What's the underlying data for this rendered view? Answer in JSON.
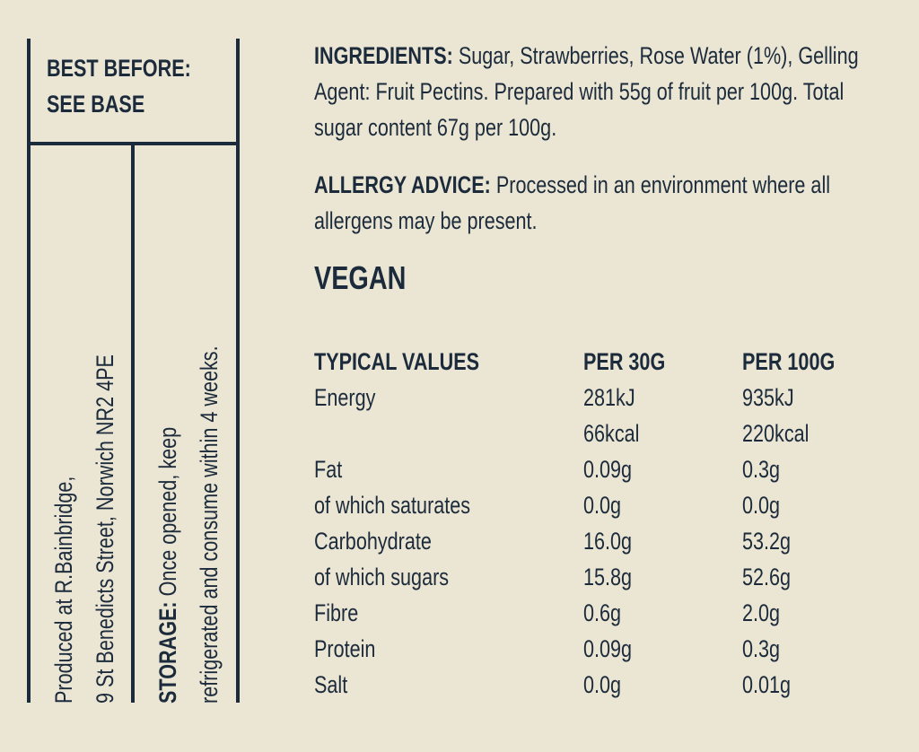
{
  "best_before": {
    "title": "BEST BEFORE:",
    "value": "SEE BASE"
  },
  "producer": {
    "lines": [
      "Produced at R.Bainbridge,",
      "9 St Benedicts Street, Norwich NR2 4PE"
    ]
  },
  "storage": {
    "label": "STORAGE:",
    "lines": [
      "Once opened, keep",
      "refrigerated and consume within 4 weeks."
    ]
  },
  "ingredients": {
    "label": "INGREDIENTS:",
    "text": "Sugar, Strawberries, Rose Water (1%), Gelling Agent: Fruit Pectins. Prepared with 55g of fruit per 100g. Total sugar content 67g per 100g."
  },
  "allergy": {
    "label": "ALLERGY ADVICE:",
    "text": "Processed in an environment where all allergens may be present."
  },
  "diet": "VEGAN",
  "table": {
    "header": [
      "TYPICAL VALUES",
      "PER 30G",
      "PER 100G"
    ],
    "rows": [
      [
        "Energy",
        "281kJ",
        "935kJ"
      ],
      [
        null,
        "66kcal",
        "220kcal"
      ],
      [
        "Fat",
        "0.09g",
        "0.3g"
      ],
      [
        "of which saturates",
        "0.0g",
        "0.0g"
      ],
      [
        "Carbohydrate",
        "16.0g",
        "53.2g"
      ],
      [
        "of which sugars",
        "15.8g",
        "52.6g"
      ],
      [
        "Fibre",
        "0.6g",
        "2.0g"
      ],
      [
        "Protein",
        "0.09g",
        "0.3g"
      ],
      [
        "Salt",
        "0.0g",
        "0.01g"
      ]
    ]
  }
}
